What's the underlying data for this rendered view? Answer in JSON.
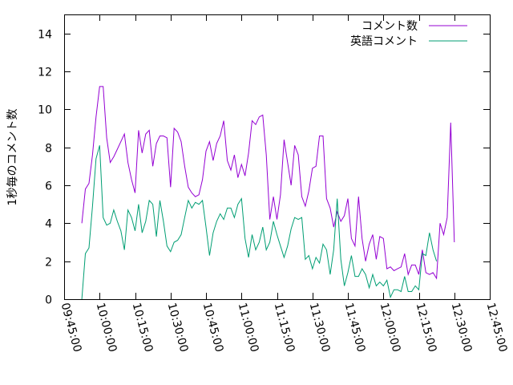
{
  "chart_data": {
    "type": "line",
    "ylabel": "1秒毎のコメント数",
    "ylim": [
      0,
      15
    ],
    "yticks": [
      0,
      2,
      4,
      6,
      8,
      10,
      12,
      14
    ],
    "xlim": [
      "09:45:00",
      "12:45:00"
    ],
    "xticks": [
      "09:45:00",
      "10:00:00",
      "10:15:00",
      "10:30:00",
      "10:45:00",
      "11:00:00",
      "11:15:00",
      "11:30:00",
      "11:45:00",
      "12:00:00",
      "12:15:00",
      "12:30:00",
      "12:45:00"
    ],
    "grid": false,
    "legend_position": "top-right",
    "series": [
      {
        "name": "コメント数",
        "color": "#9400d3",
        "points": [
          [
            "09:52:30",
            4.0
          ],
          [
            "09:54:00",
            5.8
          ],
          [
            "09:55:30",
            6.1
          ],
          [
            "09:57:00",
            7.6
          ],
          [
            "09:58:30",
            9.6
          ],
          [
            "10:00:00",
            11.2
          ],
          [
            "10:01:30",
            11.2
          ],
          [
            "10:03:00",
            8.5
          ],
          [
            "10:04:30",
            7.2
          ],
          [
            "10:06:00",
            7.5
          ],
          [
            "10:07:30",
            7.9
          ],
          [
            "10:09:00",
            8.3
          ],
          [
            "10:10:30",
            8.7
          ],
          [
            "10:12:00",
            7.2
          ],
          [
            "10:13:30",
            6.3
          ],
          [
            "10:15:00",
            5.6
          ],
          [
            "10:16:30",
            8.9
          ],
          [
            "10:18:00",
            7.7
          ],
          [
            "10:19:30",
            8.7
          ],
          [
            "10:21:00",
            8.9
          ],
          [
            "10:22:30",
            7.0
          ],
          [
            "10:24:00",
            8.2
          ],
          [
            "10:25:30",
            8.6
          ],
          [
            "10:27:00",
            8.6
          ],
          [
            "10:28:30",
            8.5
          ],
          [
            "10:30:00",
            5.9
          ],
          [
            "10:31:30",
            9.0
          ],
          [
            "10:33:00",
            8.8
          ],
          [
            "10:34:30",
            8.3
          ],
          [
            "10:36:00",
            7.0
          ],
          [
            "10:37:30",
            5.9
          ],
          [
            "10:39:00",
            5.6
          ],
          [
            "10:40:30",
            5.4
          ],
          [
            "10:42:00",
            5.5
          ],
          [
            "10:43:30",
            6.3
          ],
          [
            "10:45:00",
            7.8
          ],
          [
            "10:46:30",
            8.3
          ],
          [
            "10:48:00",
            7.3
          ],
          [
            "10:49:30",
            8.2
          ],
          [
            "10:51:00",
            8.6
          ],
          [
            "10:52:30",
            9.4
          ],
          [
            "10:54:00",
            7.3
          ],
          [
            "10:55:30",
            6.8
          ],
          [
            "10:57:00",
            7.6
          ],
          [
            "10:58:30",
            6.4
          ],
          [
            "11:00:00",
            7.1
          ],
          [
            "11:01:30",
            6.5
          ],
          [
            "11:03:00",
            7.7
          ],
          [
            "11:04:30",
            9.4
          ],
          [
            "11:06:00",
            9.2
          ],
          [
            "11:07:30",
            9.6
          ],
          [
            "11:09:00",
            9.7
          ],
          [
            "11:10:30",
            7.6
          ],
          [
            "11:12:00",
            4.2
          ],
          [
            "11:13:30",
            5.4
          ],
          [
            "11:15:00",
            4.2
          ],
          [
            "11:16:30",
            5.5
          ],
          [
            "11:18:00",
            8.4
          ],
          [
            "11:19:30",
            7.2
          ],
          [
            "11:21:00",
            6.0
          ],
          [
            "11:22:30",
            8.1
          ],
          [
            "11:24:00",
            7.6
          ],
          [
            "11:25:30",
            5.4
          ],
          [
            "11:27:00",
            4.9
          ],
          [
            "11:28:30",
            5.7
          ],
          [
            "11:30:00",
            6.9
          ],
          [
            "11:31:30",
            7.0
          ],
          [
            "11:33:00",
            8.6
          ],
          [
            "11:34:30",
            8.6
          ],
          [
            "11:36:00",
            5.3
          ],
          [
            "11:37:30",
            4.8
          ],
          [
            "11:39:00",
            3.8
          ],
          [
            "11:40:30",
            4.6
          ],
          [
            "11:42:00",
            4.1
          ],
          [
            "11:43:30",
            4.4
          ],
          [
            "11:45:00",
            5.3
          ],
          [
            "11:46:30",
            3.2
          ],
          [
            "11:48:00",
            2.8
          ],
          [
            "11:49:30",
            5.4
          ],
          [
            "11:51:00",
            3.2
          ],
          [
            "11:52:30",
            2.0
          ],
          [
            "11:54:00",
            2.9
          ],
          [
            "11:55:30",
            3.4
          ],
          [
            "11:57:00",
            2.1
          ],
          [
            "11:58:30",
            3.3
          ],
          [
            "12:00:00",
            3.2
          ],
          [
            "12:01:30",
            1.6
          ],
          [
            "12:03:00",
            1.7
          ],
          [
            "12:04:30",
            1.5
          ],
          [
            "12:06:00",
            1.6
          ],
          [
            "12:07:30",
            1.7
          ],
          [
            "12:09:00",
            2.4
          ],
          [
            "12:10:30",
            1.3
          ],
          [
            "12:12:00",
            1.8
          ],
          [
            "12:13:30",
            1.8
          ],
          [
            "12:15:00",
            1.3
          ],
          [
            "12:16:30",
            2.6
          ],
          [
            "12:18:00",
            1.4
          ],
          [
            "12:19:30",
            1.3
          ],
          [
            "12:21:00",
            1.4
          ],
          [
            "12:22:30",
            1.1
          ],
          [
            "12:24:00",
            4.0
          ],
          [
            "12:25:30",
            3.4
          ],
          [
            "12:27:00",
            4.3
          ],
          [
            "12:28:30",
            9.3
          ],
          [
            "12:30:00",
            3.0
          ]
        ]
      },
      {
        "name": "英語コメント",
        "color": "#009e73",
        "points": [
          [
            "09:52:30",
            0.0
          ],
          [
            "09:54:00",
            2.4
          ],
          [
            "09:55:30",
            2.7
          ],
          [
            "09:57:00",
            4.9
          ],
          [
            "09:58:30",
            7.4
          ],
          [
            "10:00:00",
            8.1
          ],
          [
            "10:01:30",
            4.3
          ],
          [
            "10:03:00",
            3.9
          ],
          [
            "10:04:30",
            4.0
          ],
          [
            "10:06:00",
            4.7
          ],
          [
            "10:07:30",
            4.1
          ],
          [
            "10:09:00",
            3.6
          ],
          [
            "10:10:30",
            2.6
          ],
          [
            "10:12:00",
            4.7
          ],
          [
            "10:13:30",
            4.3
          ],
          [
            "10:15:00",
            3.6
          ],
          [
            "10:16:30",
            5.0
          ],
          [
            "10:18:00",
            3.5
          ],
          [
            "10:19:30",
            4.1
          ],
          [
            "10:21:00",
            5.2
          ],
          [
            "10:22:30",
            5.0
          ],
          [
            "10:24:00",
            3.3
          ],
          [
            "10:25:30",
            5.2
          ],
          [
            "10:27:00",
            4.1
          ],
          [
            "10:28:30",
            2.8
          ],
          [
            "10:30:00",
            2.5
          ],
          [
            "10:31:30",
            3.0
          ],
          [
            "10:33:00",
            3.1
          ],
          [
            "10:34:30",
            3.4
          ],
          [
            "10:36:00",
            4.3
          ],
          [
            "10:37:30",
            5.2
          ],
          [
            "10:39:00",
            4.8
          ],
          [
            "10:40:30",
            5.1
          ],
          [
            "10:42:00",
            5.0
          ],
          [
            "10:43:30",
            5.2
          ],
          [
            "10:45:00",
            3.8
          ],
          [
            "10:46:30",
            2.3
          ],
          [
            "10:48:00",
            3.5
          ],
          [
            "10:49:30",
            4.1
          ],
          [
            "10:51:00",
            4.5
          ],
          [
            "10:52:30",
            4.2
          ],
          [
            "10:54:00",
            4.8
          ],
          [
            "10:55:30",
            4.8
          ],
          [
            "10:57:00",
            4.3
          ],
          [
            "10:58:30",
            5.0
          ],
          [
            "11:00:00",
            5.3
          ],
          [
            "11:01:30",
            3.2
          ],
          [
            "11:03:00",
            2.2
          ],
          [
            "11:04:30",
            3.4
          ],
          [
            "11:06:00",
            2.6
          ],
          [
            "11:07:30",
            3.0
          ],
          [
            "11:09:00",
            3.8
          ],
          [
            "11:10:30",
            2.6
          ],
          [
            "11:12:00",
            3.0
          ],
          [
            "11:13:30",
            4.1
          ],
          [
            "11:15:00",
            3.4
          ],
          [
            "11:16:30",
            2.8
          ],
          [
            "11:18:00",
            2.2
          ],
          [
            "11:19:30",
            2.8
          ],
          [
            "11:21:00",
            3.7
          ],
          [
            "11:22:30",
            4.3
          ],
          [
            "11:24:00",
            4.2
          ],
          [
            "11:25:30",
            4.3
          ],
          [
            "11:27:00",
            2.1
          ],
          [
            "11:28:30",
            2.3
          ],
          [
            "11:30:00",
            1.6
          ],
          [
            "11:31:30",
            2.2
          ],
          [
            "11:33:00",
            1.9
          ],
          [
            "11:34:30",
            2.9
          ],
          [
            "11:36:00",
            2.6
          ],
          [
            "11:37:30",
            1.3
          ],
          [
            "11:39:00",
            2.6
          ],
          [
            "11:40:30",
            5.3
          ],
          [
            "11:42:00",
            2.1
          ],
          [
            "11:43:30",
            0.7
          ],
          [
            "11:45:00",
            1.4
          ],
          [
            "11:46:30",
            2.3
          ],
          [
            "11:48:00",
            1.2
          ],
          [
            "11:49:30",
            1.2
          ],
          [
            "11:51:00",
            1.6
          ],
          [
            "11:52:30",
            1.3
          ],
          [
            "11:54:00",
            0.6
          ],
          [
            "11:55:30",
            1.3
          ],
          [
            "11:57:00",
            0.7
          ],
          [
            "11:58:30",
            0.9
          ],
          [
            "12:00:00",
            0.7
          ],
          [
            "12:01:30",
            1.0
          ],
          [
            "12:03:00",
            0.1
          ],
          [
            "12:04:30",
            0.5
          ],
          [
            "12:06:00",
            0.5
          ],
          [
            "12:07:30",
            0.4
          ],
          [
            "12:09:00",
            1.2
          ],
          [
            "12:10:30",
            0.4
          ],
          [
            "12:12:00",
            0.4
          ],
          [
            "12:13:30",
            0.7
          ],
          [
            "12:15:00",
            0.5
          ],
          [
            "12:16:30",
            2.4
          ],
          [
            "12:18:00",
            2.3
          ],
          [
            "12:19:30",
            3.5
          ],
          [
            "12:21:00",
            2.6
          ],
          [
            "12:22:30",
            2.0
          ]
        ]
      }
    ]
  }
}
